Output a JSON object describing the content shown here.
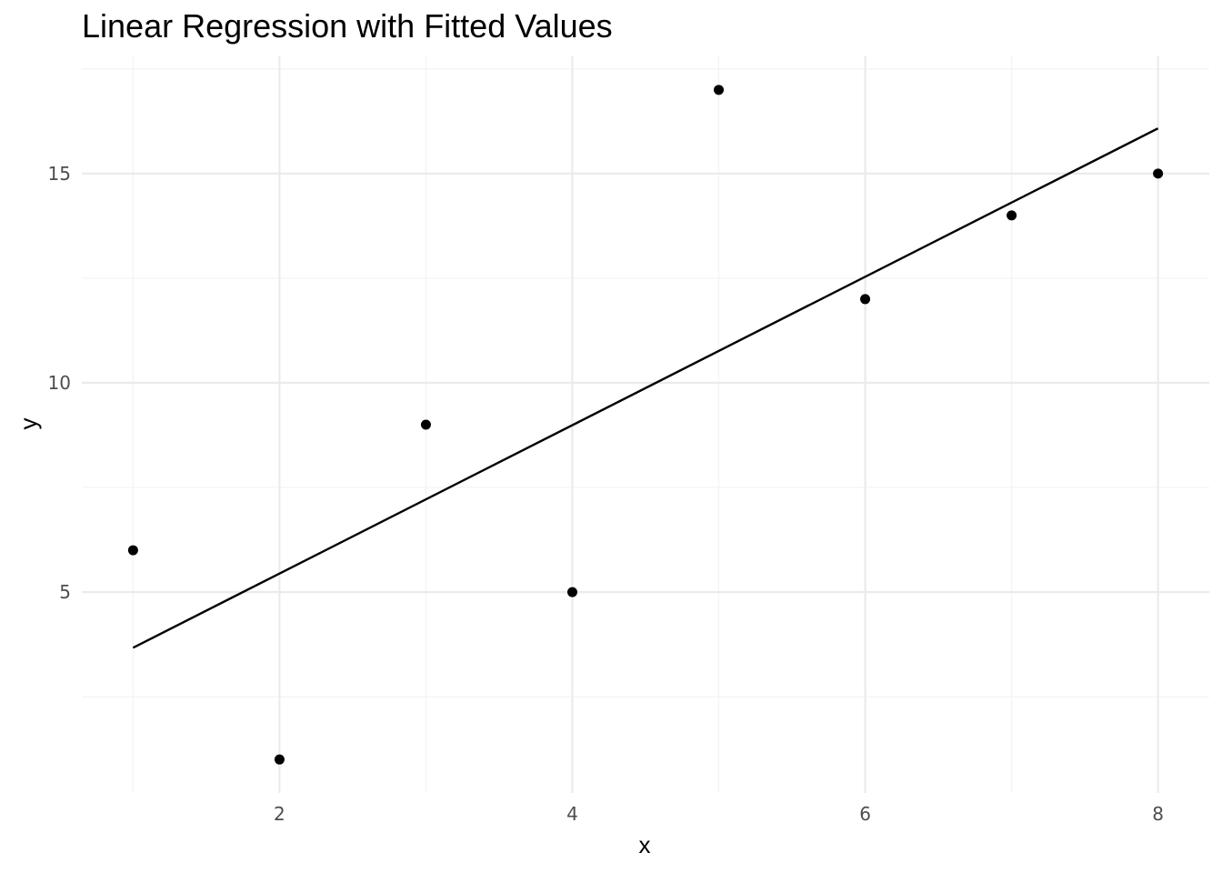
{
  "chart_data": {
    "type": "scatter",
    "title": "Linear Regression with Fitted Values",
    "xlabel": "x",
    "ylabel": "y",
    "xlim": [
      0.65,
      8.35
    ],
    "ylim": [
      0.2,
      17.8
    ],
    "x_ticks": [
      2,
      4,
      6,
      8
    ],
    "x_minor_ticks": [
      1,
      3,
      5,
      7
    ],
    "y_ticks": [
      5,
      10,
      15
    ],
    "y_minor_ticks": [
      2.5,
      7.5,
      12.5,
      17.5
    ],
    "grid": true,
    "legend": "none",
    "points": {
      "x": [
        1,
        2,
        3,
        4,
        5,
        6,
        7,
        8
      ],
      "y": [
        6,
        1,
        9,
        5,
        17,
        12,
        14,
        15
      ]
    },
    "fitted_line": {
      "x": [
        1,
        8
      ],
      "y": [
        3.67,
        16.08
      ]
    },
    "colors": {
      "points": "#000000",
      "line": "#000000",
      "grid_major": "#ebebeb",
      "grid_minor": "#f3f3f3",
      "tick_text": "#4d4d4d"
    }
  }
}
